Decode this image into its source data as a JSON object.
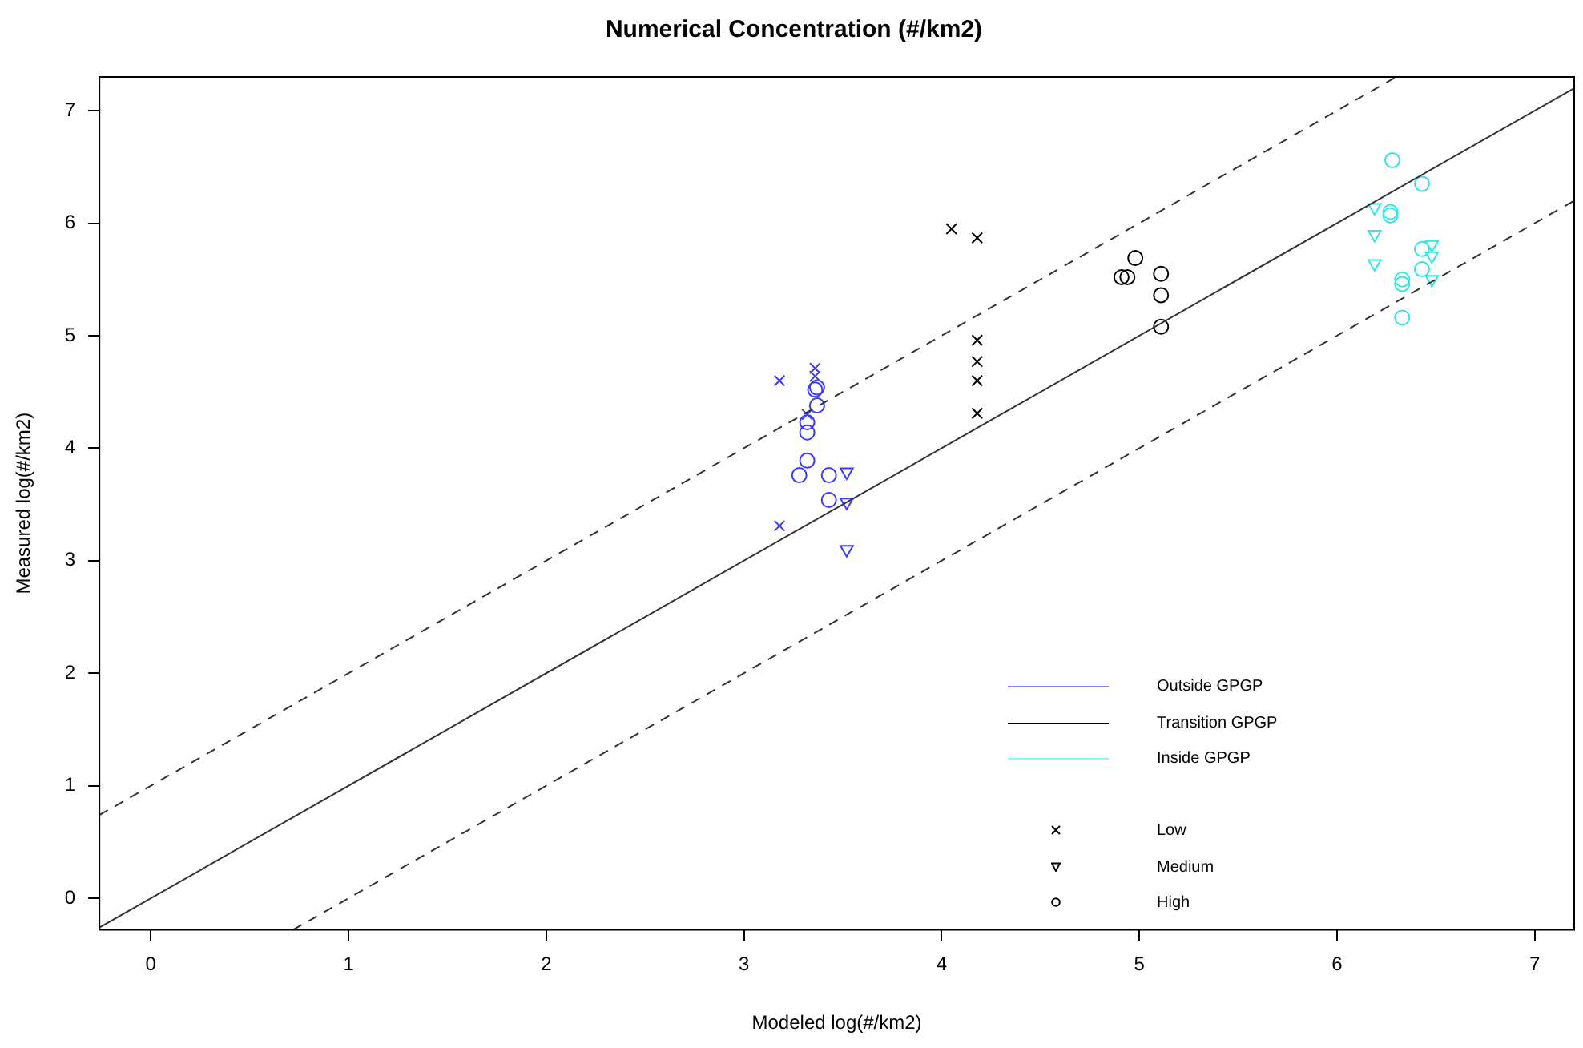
{
  "chart_data": {
    "type": "scatter",
    "title": "Numerical Concentration (#/km2)",
    "xlabel": "Modeled log(#/km2)",
    "ylabel": "Measured log(#/km2)",
    "xlim": [
      -0.26,
      7.2
    ],
    "ylim": [
      -0.28,
      7.3
    ],
    "xticks": [
      0,
      1,
      2,
      3,
      4,
      5,
      6,
      7
    ],
    "yticks": [
      0,
      1,
      2,
      3,
      4,
      5,
      6,
      7
    ],
    "grid": false,
    "annotations": [
      "Outside GPGP",
      "Transition GPGP",
      "Inside GPGP",
      "Low",
      "Medium",
      "High"
    ],
    "series": [
      {
        "type": "line",
        "color": "#333333",
        "line_style": "solid",
        "marker": "none",
        "x": [
          -0.26,
          7.2
        ],
        "values": [
          -0.26,
          7.2
        ]
      },
      {
        "type": "line",
        "color": "#333333",
        "line_style": "dashed",
        "marker": "none",
        "x": [
          -0.26,
          6.3
        ],
        "values": [
          0.74,
          7.3
        ]
      },
      {
        "type": "line",
        "color": "#333333",
        "line_style": "dashed",
        "marker": "none",
        "x": [
          0.72,
          7.2
        ],
        "values": [
          -0.28,
          6.2
        ]
      },
      {
        "color": "#3b3bff",
        "marker": "cross",
        "x": [
          3.18,
          3.36,
          3.36,
          3.32,
          3.18
        ],
        "values": [
          4.6,
          4.71,
          4.64,
          4.3,
          3.31
        ]
      },
      {
        "color": "#3b3bff",
        "marker": "triangle",
        "x": [
          3.52,
          3.52,
          3.52
        ],
        "values": [
          3.79,
          3.52,
          3.1
        ]
      },
      {
        "color": "#3b3bff",
        "marker": "circle",
        "x": [
          3.37,
          3.36,
          3.37,
          3.32,
          3.32,
          3.32,
          3.28,
          3.43,
          3.43
        ],
        "values": [
          4.54,
          4.52,
          4.38,
          4.23,
          4.14,
          3.89,
          3.76,
          3.76,
          3.54
        ]
      },
      {
        "color": "#000000",
        "marker": "cross",
        "x": [
          4.05,
          4.18,
          4.18,
          4.18,
          4.18,
          4.18
        ],
        "values": [
          5.95,
          5.87,
          4.96,
          4.77,
          4.6,
          4.31
        ]
      },
      {
        "color": "#000000",
        "marker": "circle",
        "x": [
          4.98,
          4.91,
          4.94,
          5.11,
          5.11,
          5.11
        ],
        "values": [
          5.69,
          5.52,
          5.52,
          5.55,
          5.36,
          5.08
        ]
      },
      {
        "color": "#33e6e6",
        "marker": "triangle",
        "x": [
          6.19,
          6.19,
          6.19,
          6.48,
          6.48,
          6.48
        ],
        "values": [
          6.14,
          5.9,
          5.64,
          5.81,
          5.71,
          5.5
        ]
      },
      {
        "color": "#33e6e6",
        "marker": "circle",
        "x": [
          6.28,
          6.43,
          6.27,
          6.27,
          6.43,
          6.43,
          6.33,
          6.33,
          6.33
        ],
        "values": [
          6.56,
          6.35,
          6.1,
          6.07,
          5.77,
          5.59,
          5.5,
          5.46,
          5.16
        ]
      }
    ]
  }
}
